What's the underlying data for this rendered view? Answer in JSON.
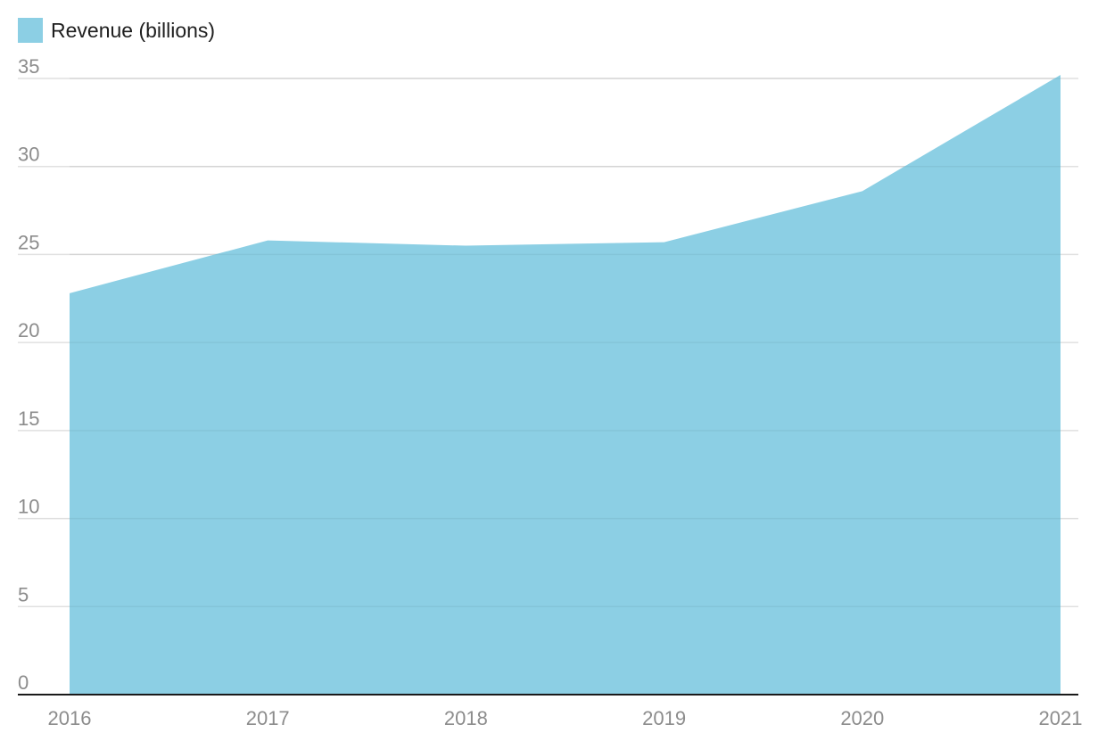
{
  "chart_data": {
    "type": "area",
    "title": "",
    "xlabel": "",
    "ylabel": "",
    "legend": {
      "placement": "top-left",
      "entries": [
        {
          "name": "Revenue (billions)",
          "color": "#8ccfe4"
        }
      ]
    },
    "x": [
      "2016",
      "2017",
      "2018",
      "2019",
      "2020",
      "2021"
    ],
    "series": [
      {
        "name": "Revenue (billions)",
        "values": [
          22.8,
          25.8,
          25.5,
          25.7,
          28.6,
          35.2
        ],
        "color": "#8ccfe4"
      }
    ],
    "ylim": [
      0,
      35
    ],
    "yticks": [
      "0",
      "5",
      "10",
      "15",
      "20",
      "25",
      "30",
      "35"
    ],
    "grid": true,
    "colors": {
      "grid": "#e0e0e0",
      "baseline": "#1a1a1a",
      "tick_text": "#8c8c8c"
    }
  }
}
